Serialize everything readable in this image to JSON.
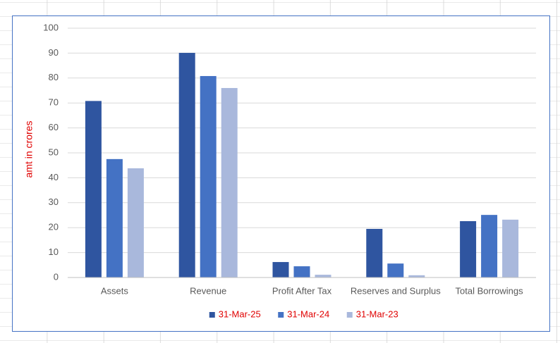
{
  "chart_data": {
    "type": "bar",
    "y_label": "amt in crores",
    "categories": [
      "Assets",
      "Revenue",
      "Profit After Tax",
      "Reserves and Surplus",
      "Total Borrowings"
    ],
    "series": [
      {
        "name": "31-Mar-25",
        "color": "#2f55a0",
        "values": [
          70.8,
          90.1,
          6.2,
          19.5,
          22.6
        ]
      },
      {
        "name": "31-Mar-24",
        "color": "#4472c4",
        "values": [
          47.5,
          80.8,
          4.5,
          5.6,
          25.1
        ]
      },
      {
        "name": "31-Mar-23",
        "color": "#a9b8dc",
        "values": [
          43.8,
          76.0,
          1.1,
          0.9,
          23.2
        ]
      }
    ],
    "ylim": [
      0,
      100
    ],
    "yticks": [
      0,
      10,
      20,
      30,
      40,
      50,
      60,
      70,
      80,
      90,
      100
    ],
    "grid": true,
    "legend": "bottom"
  }
}
